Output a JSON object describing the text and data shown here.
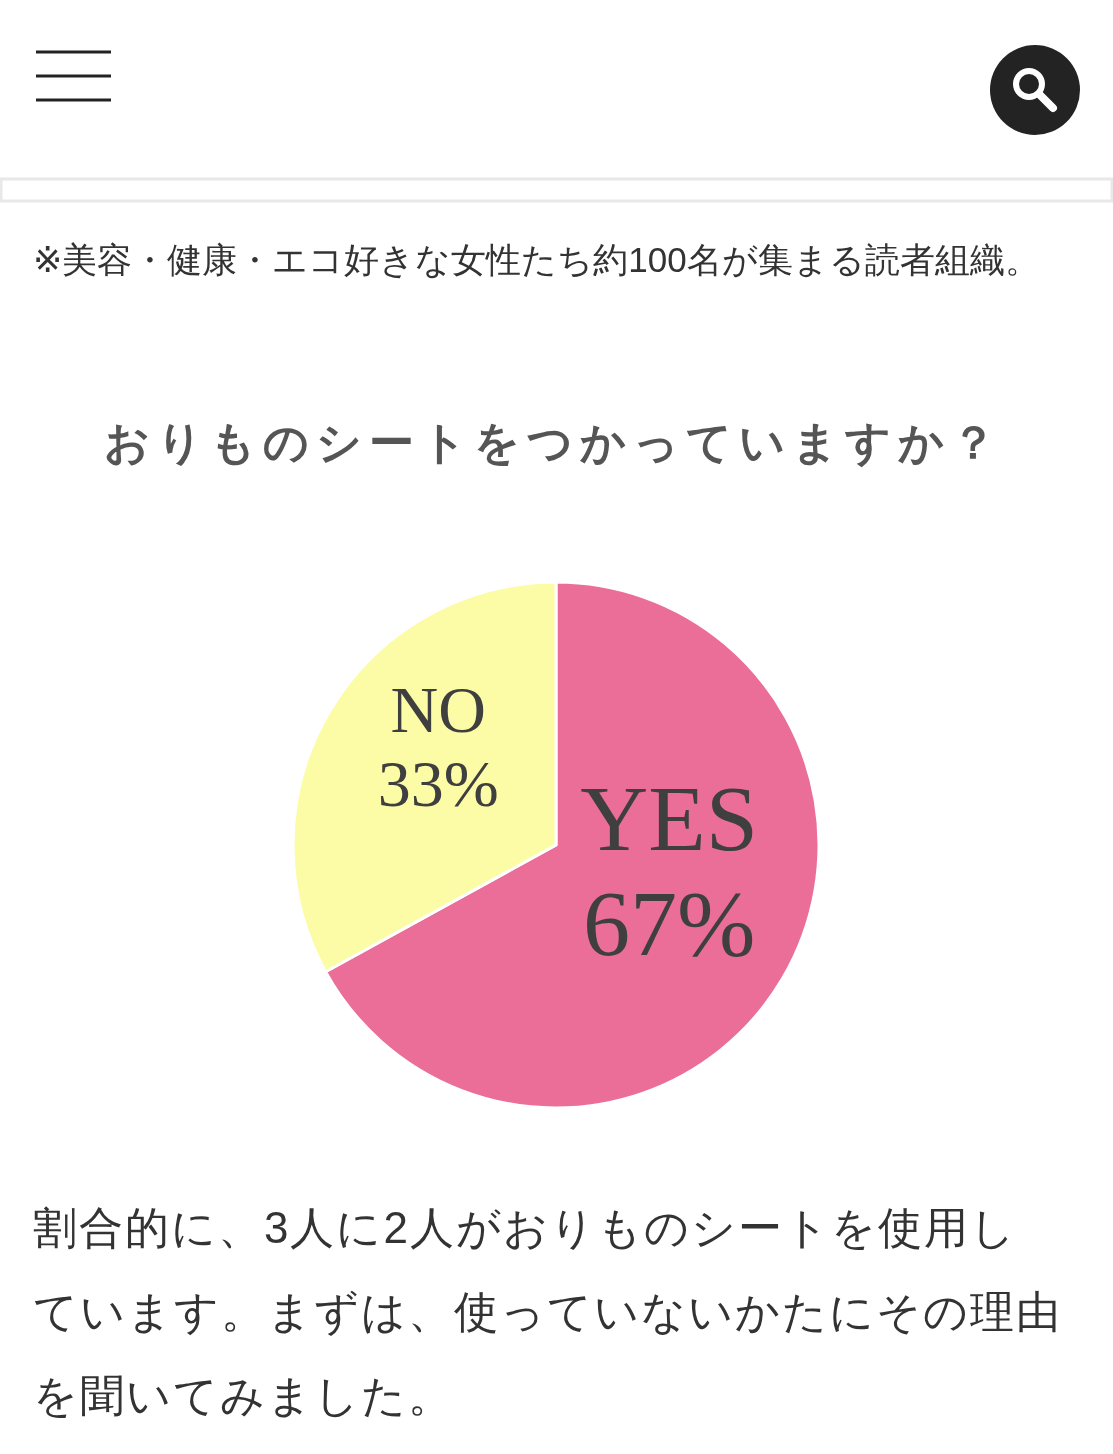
{
  "chart_data": {
    "type": "pie",
    "title": "おりものシートをつかっていますか？",
    "categories": [
      "YES",
      "NO"
    ],
    "values": [
      67,
      33
    ],
    "colors": [
      "#ea6e97",
      "#fdfca6"
    ],
    "value_labels": [
      "67%",
      "33%"
    ],
    "annotations": [
      "※美容・健康・エコ好きな女性たち約100名が集まる読者組織。",
      "割合的に、3人に2人がおりものシートを使用しています。まずは、使っていないかたにその理由を聞いてみました。"
    ]
  }
}
